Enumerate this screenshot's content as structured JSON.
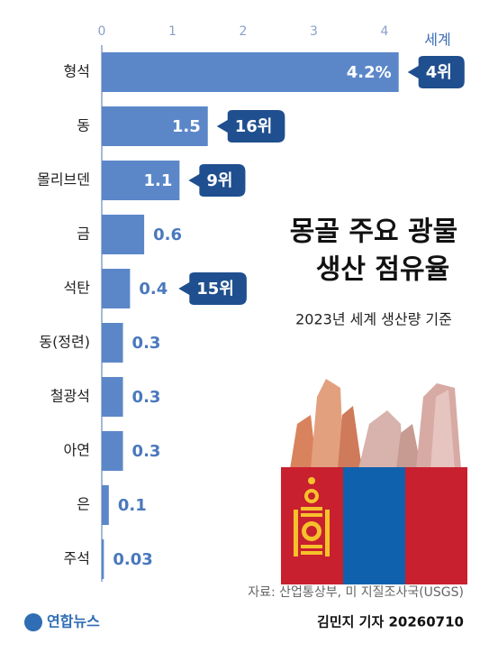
{
  "chart_data": {
    "type": "bar",
    "orientation": "horizontal",
    "title": [
      "몽골 주요 광물",
      "생산 점유율"
    ],
    "subtitle": "2023년 세계 생산량 기준",
    "categories": [
      "형석",
      "동",
      "몰리브덴",
      "금",
      "석탄",
      "동(정련)",
      "철광석",
      "아연",
      "은",
      "주석"
    ],
    "values": [
      4.2,
      1.5,
      1.1,
      0.6,
      0.4,
      0.3,
      0.3,
      0.3,
      0.1,
      0.03
    ],
    "value_labels": [
      "4.2%",
      "1.5",
      "1.1",
      "0.6",
      "0.4",
      "0.3",
      "0.3",
      "0.3",
      "0.1",
      "0.03"
    ],
    "rank_header": "세계",
    "rank_labels": [
      "4위",
      "16위",
      "9위",
      null,
      "15위",
      null,
      null,
      null,
      null,
      null
    ],
    "color": "#5b87c9",
    "xlim": [
      0,
      5
    ],
    "xticks": [
      0,
      1,
      2,
      3,
      4
    ],
    "source": "자료: 산업통상부, 미 지질조사국(USGS)",
    "byline": "김민지 기자  20260710",
    "logo": "연합뉴스"
  }
}
